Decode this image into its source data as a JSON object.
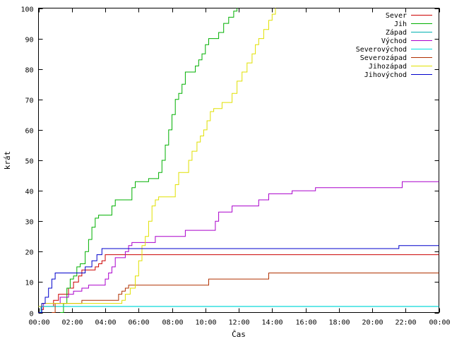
{
  "chart_data": {
    "type": "line",
    "xlabel": "Čas",
    "ylabel": "krát",
    "ylim": [
      0,
      100
    ],
    "xlim": [
      0,
      24
    ],
    "x_ticks": [
      0,
      2,
      4,
      6,
      8,
      10,
      12,
      14,
      16,
      18,
      20,
      22,
      24
    ],
    "x_tick_labels": [
      "00:00",
      "02:00",
      "04:00",
      "06:00",
      "08:00",
      "10:00",
      "12:00",
      "14:00",
      "16:00",
      "18:00",
      "20:00",
      "22:00",
      "00:00"
    ],
    "y_ticks": [
      0,
      10,
      20,
      30,
      40,
      50,
      60,
      70,
      80,
      90,
      100
    ],
    "grid": false,
    "legend_position": "top-right",
    "series": [
      {
        "name": "Sever",
        "color": "#cc0000",
        "points": [
          [
            0,
            0
          ],
          [
            0.15,
            1
          ],
          [
            0.3,
            2
          ],
          [
            0.6,
            2
          ],
          [
            0.9,
            4
          ],
          [
            1.2,
            6
          ],
          [
            1.5,
            6
          ],
          [
            1.8,
            8
          ],
          [
            2.1,
            10
          ],
          [
            2.4,
            12
          ],
          [
            2.6,
            14
          ],
          [
            3.3,
            14
          ],
          [
            3.4,
            15
          ],
          [
            3.6,
            16
          ],
          [
            3.8,
            17
          ],
          [
            4.0,
            19
          ],
          [
            24,
            19
          ]
        ]
      },
      {
        "name": "Jih",
        "color": "#00b000",
        "points": [
          [
            1.3,
            0
          ],
          [
            1.5,
            3
          ],
          [
            1.7,
            8
          ],
          [
            1.9,
            11
          ],
          [
            2.1,
            12
          ],
          [
            2.3,
            15
          ],
          [
            2.5,
            16
          ],
          [
            2.8,
            20
          ],
          [
            3.0,
            24
          ],
          [
            3.2,
            28
          ],
          [
            3.4,
            31
          ],
          [
            3.6,
            32
          ],
          [
            4.2,
            32
          ],
          [
            4.4,
            35
          ],
          [
            4.6,
            37
          ],
          [
            5.4,
            37
          ],
          [
            5.6,
            41
          ],
          [
            5.8,
            43
          ],
          [
            6.4,
            43
          ],
          [
            6.6,
            44
          ],
          [
            7.0,
            44
          ],
          [
            7.2,
            46
          ],
          [
            7.4,
            50
          ],
          [
            7.6,
            55
          ],
          [
            7.8,
            60
          ],
          [
            8.0,
            65
          ],
          [
            8.2,
            70
          ],
          [
            8.4,
            72
          ],
          [
            8.6,
            75
          ],
          [
            8.8,
            79
          ],
          [
            9.2,
            79
          ],
          [
            9.4,
            81
          ],
          [
            9.6,
            83
          ],
          [
            9.8,
            85
          ],
          [
            10.0,
            88
          ],
          [
            10.2,
            90
          ],
          [
            10.5,
            90
          ],
          [
            10.8,
            92
          ],
          [
            11.1,
            95
          ],
          [
            11.4,
            97
          ],
          [
            11.7,
            99
          ],
          [
            11.9,
            100
          ]
        ]
      },
      {
        "name": "Západ",
        "color": "#00b0b0",
        "points": [
          [
            0,
            0
          ],
          [
            0.15,
            2
          ],
          [
            24,
            2
          ]
        ]
      },
      {
        "name": "Východ",
        "color": "#aa00cc",
        "points": [
          [
            0,
            2
          ],
          [
            0.3,
            3
          ],
          [
            1.0,
            3
          ],
          [
            1.3,
            5
          ],
          [
            1.8,
            6
          ],
          [
            2.1,
            7
          ],
          [
            2.6,
            8
          ],
          [
            3.0,
            9
          ],
          [
            3.8,
            9
          ],
          [
            4.0,
            11
          ],
          [
            4.2,
            13
          ],
          [
            4.4,
            15
          ],
          [
            4.6,
            18
          ],
          [
            5.0,
            18
          ],
          [
            5.2,
            20
          ],
          [
            5.4,
            22
          ],
          [
            5.6,
            23
          ],
          [
            6.8,
            23
          ],
          [
            7.0,
            25
          ],
          [
            8.6,
            25
          ],
          [
            8.8,
            27
          ],
          [
            10.4,
            27
          ],
          [
            10.6,
            30
          ],
          [
            10.8,
            33
          ],
          [
            11.4,
            33
          ],
          [
            11.6,
            35
          ],
          [
            13.0,
            35
          ],
          [
            13.2,
            37
          ],
          [
            13.6,
            37
          ],
          [
            13.8,
            39
          ],
          [
            15.0,
            39
          ],
          [
            15.2,
            40
          ],
          [
            16.4,
            40
          ],
          [
            16.6,
            41
          ],
          [
            21.6,
            41
          ],
          [
            21.8,
            43
          ],
          [
            24,
            43
          ]
        ]
      },
      {
        "name": "Severovýchod",
        "color": "#00e0e0",
        "points": [
          [
            0,
            2
          ],
          [
            24,
            2
          ]
        ]
      },
      {
        "name": "Severozápad",
        "color": "#b03000",
        "points": [
          [
            0.8,
            0
          ],
          [
            1.0,
            3
          ],
          [
            2.2,
            3
          ],
          [
            2.6,
            4
          ],
          [
            4.6,
            4
          ],
          [
            4.8,
            6
          ],
          [
            5.0,
            7
          ],
          [
            5.2,
            8
          ],
          [
            5.4,
            9
          ],
          [
            10.0,
            9
          ],
          [
            10.2,
            11
          ],
          [
            13.6,
            11
          ],
          [
            13.8,
            13
          ],
          [
            24,
            13
          ]
        ]
      },
      {
        "name": "Jihozápad",
        "color": "#e0e000",
        "points": [
          [
            0,
            2
          ],
          [
            0.2,
            3
          ],
          [
            4.8,
            3
          ],
          [
            5.0,
            4
          ],
          [
            5.2,
            6
          ],
          [
            5.5,
            8
          ],
          [
            5.8,
            12
          ],
          [
            6.0,
            17
          ],
          [
            6.2,
            22
          ],
          [
            6.4,
            25
          ],
          [
            6.6,
            30
          ],
          [
            6.8,
            35
          ],
          [
            7.0,
            37
          ],
          [
            7.2,
            38
          ],
          [
            8.0,
            38
          ],
          [
            8.2,
            42
          ],
          [
            8.4,
            46
          ],
          [
            8.8,
            46
          ],
          [
            9.0,
            50
          ],
          [
            9.2,
            53
          ],
          [
            9.5,
            56
          ],
          [
            9.7,
            58
          ],
          [
            9.9,
            60
          ],
          [
            10.1,
            63
          ],
          [
            10.3,
            66
          ],
          [
            10.5,
            67
          ],
          [
            10.8,
            67
          ],
          [
            11.0,
            69
          ],
          [
            11.4,
            69
          ],
          [
            11.6,
            72
          ],
          [
            11.9,
            76
          ],
          [
            12.2,
            79
          ],
          [
            12.5,
            82
          ],
          [
            12.8,
            85
          ],
          [
            13.0,
            88
          ],
          [
            13.2,
            90
          ],
          [
            13.5,
            93
          ],
          [
            13.8,
            96
          ],
          [
            14.0,
            98
          ],
          [
            14.2,
            100
          ]
        ]
      },
      {
        "name": "Jihovýchod",
        "color": "#0000cc",
        "points": [
          [
            0,
            0
          ],
          [
            0.2,
            3
          ],
          [
            0.4,
            5
          ],
          [
            0.6,
            8
          ],
          [
            0.8,
            11
          ],
          [
            1.0,
            13
          ],
          [
            2.6,
            13
          ],
          [
            2.8,
            15
          ],
          [
            3.2,
            17
          ],
          [
            3.5,
            19
          ],
          [
            3.8,
            21
          ],
          [
            21.4,
            21
          ],
          [
            21.6,
            22
          ],
          [
            24,
            22
          ]
        ]
      }
    ]
  }
}
